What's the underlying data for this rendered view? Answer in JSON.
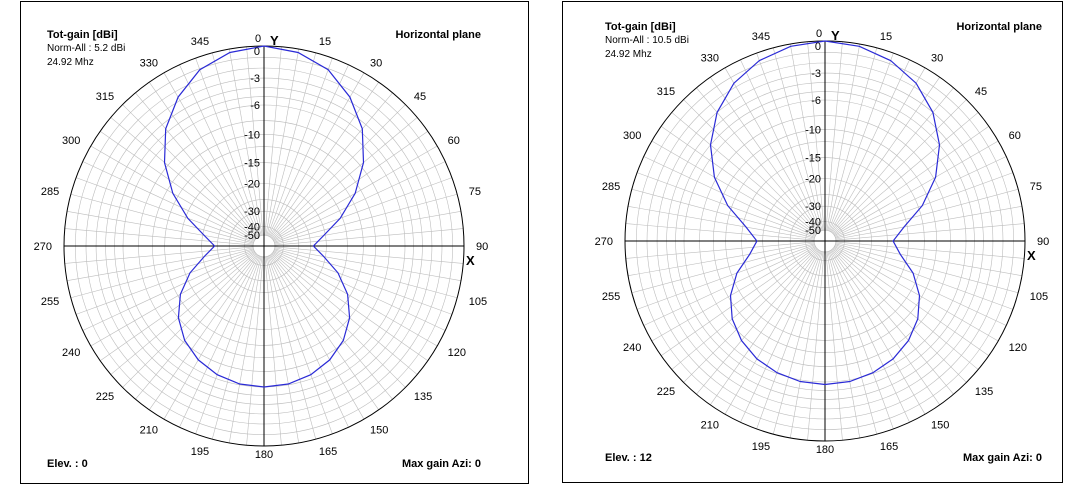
{
  "chart_data": [
    {
      "type": "polar",
      "title": "Tot-gain [dBi]",
      "subtitle_norm": "Norm-All : 5.2 dBi",
      "frequency": "24.92 Mhz",
      "plane": "Horizontal plane",
      "elevation_label": "Elev. : 0",
      "max_gain_label": "Max gain Azi: 0",
      "y_axis_label": "Y",
      "x_axis_label": "X",
      "line_color": "#2a2ad6",
      "grid_color": "#bdbdbd",
      "axis_color": "#000000",
      "ring_labels": [
        {
          "text": "0",
          "level": 0
        },
        {
          "text": "-3",
          "level": -3
        },
        {
          "text": "-6",
          "level": -6
        },
        {
          "text": "-10",
          "level": -10
        },
        {
          "text": "-15",
          "level": -15
        },
        {
          "text": "-20",
          "level": -20
        },
        {
          "text": "-30",
          "level": -30
        },
        {
          "text": "-40",
          "level": -40
        },
        {
          "text": "-50",
          "level": -50
        }
      ],
      "angle_labels": [
        "0",
        "15",
        "30",
        "45",
        "60",
        "75",
        "90",
        "105",
        "120",
        "135",
        "150",
        "165",
        "180",
        "195",
        "210",
        "225",
        "240",
        "255",
        "270",
        "285",
        "300",
        "315",
        "330",
        "345"
      ],
      "pattern": [
        {
          "az": 0,
          "db": 0
        },
        {
          "az": 10,
          "db": -0.3
        },
        {
          "az": 20,
          "db": -1.1
        },
        {
          "az": 30,
          "db": -2.6
        },
        {
          "az": 40,
          "db": -4.6
        },
        {
          "az": 50,
          "db": -7.4
        },
        {
          "az": 60,
          "db": -11
        },
        {
          "az": 70,
          "db": -15.5
        },
        {
          "az": 80,
          "db": -20.5
        },
        {
          "az": 90,
          "db": -24
        },
        {
          "az": 100,
          "db": -20.5
        },
        {
          "az": 110,
          "db": -16
        },
        {
          "az": 120,
          "db": -12.5
        },
        {
          "az": 130,
          "db": -10
        },
        {
          "az": 140,
          "db": -8.3
        },
        {
          "az": 150,
          "db": -7.2
        },
        {
          "az": 160,
          "db": -6.5
        },
        {
          "az": 170,
          "db": -6.1
        },
        {
          "az": 180,
          "db": -6.0
        },
        {
          "az": 190,
          "db": -6.1
        },
        {
          "az": 200,
          "db": -6.5
        },
        {
          "az": 210,
          "db": -7.2
        },
        {
          "az": 220,
          "db": -8.3
        },
        {
          "az": 230,
          "db": -10
        },
        {
          "az": 240,
          "db": -12.5
        },
        {
          "az": 250,
          "db": -16
        },
        {
          "az": 260,
          "db": -20.5
        },
        {
          "az": 270,
          "db": -24
        },
        {
          "az": 280,
          "db": -20.5
        },
        {
          "az": 290,
          "db": -15.5
        },
        {
          "az": 300,
          "db": -11
        },
        {
          "az": 310,
          "db": -7.4
        },
        {
          "az": 320,
          "db": -4.6
        },
        {
          "az": 330,
          "db": -2.6
        },
        {
          "az": 340,
          "db": -1.1
        },
        {
          "az": 350,
          "db": -0.3
        },
        {
          "az": 360,
          "db": 0
        }
      ]
    },
    {
      "type": "polar",
      "title": "Tot-gain [dBi]",
      "subtitle_norm": "Norm-All : 10.5 dBi",
      "frequency": "24.92 Mhz",
      "plane": "Horizontal plane",
      "elevation_label": "Elev. : 12",
      "max_gain_label": "Max gain Azi: 0",
      "y_axis_label": "Y",
      "x_axis_label": "X",
      "line_color": "#2a2ad6",
      "grid_color": "#bdbdbd",
      "axis_color": "#000000",
      "ring_labels": [
        {
          "text": "0",
          "level": 0
        },
        {
          "text": "-3",
          "level": -3
        },
        {
          "text": "-6",
          "level": -6
        },
        {
          "text": "-10",
          "level": -10
        },
        {
          "text": "-15",
          "level": -15
        },
        {
          "text": "-20",
          "level": -20
        },
        {
          "text": "-30",
          "level": -30
        },
        {
          "text": "-40",
          "level": -40
        },
        {
          "text": "-50",
          "level": -50
        }
      ],
      "angle_labels": [
        "0",
        "15",
        "30",
        "45",
        "60",
        "75",
        "90",
        "105",
        "120",
        "135",
        "150",
        "165",
        "180",
        "195",
        "210",
        "225",
        "240",
        "255",
        "270",
        "285",
        "300",
        "315",
        "330",
        "345"
      ],
      "pattern": [
        {
          "az": 0,
          "db": 0
        },
        {
          "az": 10,
          "db": -0.2
        },
        {
          "az": 20,
          "db": -0.7
        },
        {
          "az": 30,
          "db": -1.6
        },
        {
          "az": 40,
          "db": -3.0
        },
        {
          "az": 50,
          "db": -5.0
        },
        {
          "az": 60,
          "db": -7.7
        },
        {
          "az": 70,
          "db": -11.3
        },
        {
          "az": 80,
          "db": -15.7
        },
        {
          "az": 90,
          "db": -18.5
        },
        {
          "az": 100,
          "db": -16.5
        },
        {
          "az": 110,
          "db": -13.0
        },
        {
          "az": 120,
          "db": -10.4
        },
        {
          "az": 130,
          "db": -8.6
        },
        {
          "az": 140,
          "db": -7.4
        },
        {
          "az": 150,
          "db": -6.6
        },
        {
          "az": 160,
          "db": -6.1
        },
        {
          "az": 170,
          "db": -5.8
        },
        {
          "az": 180,
          "db": -5.7
        },
        {
          "az": 190,
          "db": -5.8
        },
        {
          "az": 200,
          "db": -6.1
        },
        {
          "az": 210,
          "db": -6.6
        },
        {
          "az": 220,
          "db": -7.4
        },
        {
          "az": 230,
          "db": -8.6
        },
        {
          "az": 240,
          "db": -10.4
        },
        {
          "az": 250,
          "db": -13.0
        },
        {
          "az": 260,
          "db": -16.5
        },
        {
          "az": 270,
          "db": -18.5
        },
        {
          "az": 280,
          "db": -15.7
        },
        {
          "az": 290,
          "db": -11.3
        },
        {
          "az": 300,
          "db": -7.7
        },
        {
          "az": 310,
          "db": -5.0
        },
        {
          "az": 320,
          "db": -3.0
        },
        {
          "az": 330,
          "db": -1.6
        },
        {
          "az": 340,
          "db": -0.7
        },
        {
          "az": 350,
          "db": -0.2
        },
        {
          "az": 360,
          "db": 0
        }
      ]
    }
  ]
}
